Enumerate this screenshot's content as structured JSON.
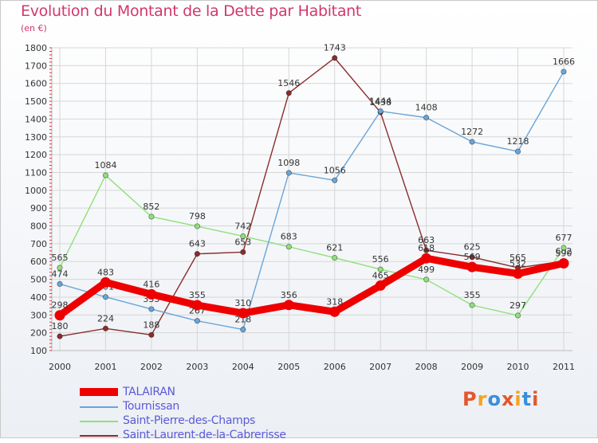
{
  "title": "Evolution du Montant de la Dette par Habitant",
  "unit_label": "(en €)",
  "logo": {
    "text": "Proxiti",
    "colors": [
      "#e3572b",
      "#f2a51c",
      "#3a8fd9",
      "#e3572b",
      "#f2a51c",
      "#3a8fd9",
      "#e3572b"
    ]
  },
  "chart_data": {
    "type": "line",
    "title": "Evolution du Montant de la Dette par Habitant",
    "ylabel": "(en €)",
    "xlabel": "",
    "ylim": [
      100,
      1800
    ],
    "y_ticks": [
      100,
      200,
      300,
      400,
      500,
      600,
      700,
      800,
      900,
      1000,
      1100,
      1200,
      1300,
      1400,
      1500,
      1600,
      1700,
      1800
    ],
    "categories": [
      "2000",
      "2001",
      "2002",
      "2003",
      "2004",
      "2005",
      "2006",
      "2007",
      "2008",
      "2009",
      "2010",
      "2011"
    ],
    "grid": true,
    "legend_position": "bottom-left",
    "series": [
      {
        "name": "Saint-Laurent-de-la-Cabrerisse",
        "color": "#8b2d2d",
        "values": [
          180,
          224,
          188,
          643,
          653,
          1546,
          1743,
          1438,
          663,
          625,
          565,
          602
        ]
      },
      {
        "name": "Saint-Pierre-des-Champs",
        "color": "#8fe07a",
        "values": [
          565,
          1084,
          852,
          798,
          742,
          683,
          621,
          556,
          499,
          355,
          297,
          677
        ]
      },
      {
        "name": "Tournissan",
        "color": "#6aa5d8",
        "values": [
          474,
          401,
          333,
          267,
          218,
          1098,
          1056,
          1444,
          1408,
          1272,
          1218,
          1666
        ]
      },
      {
        "name": "TALAIRAN",
        "color": "#ee0000",
        "values": [
          298,
          483,
          416,
          355,
          310,
          356,
          318,
          465,
          618,
          569,
          532,
          590
        ]
      }
    ]
  }
}
